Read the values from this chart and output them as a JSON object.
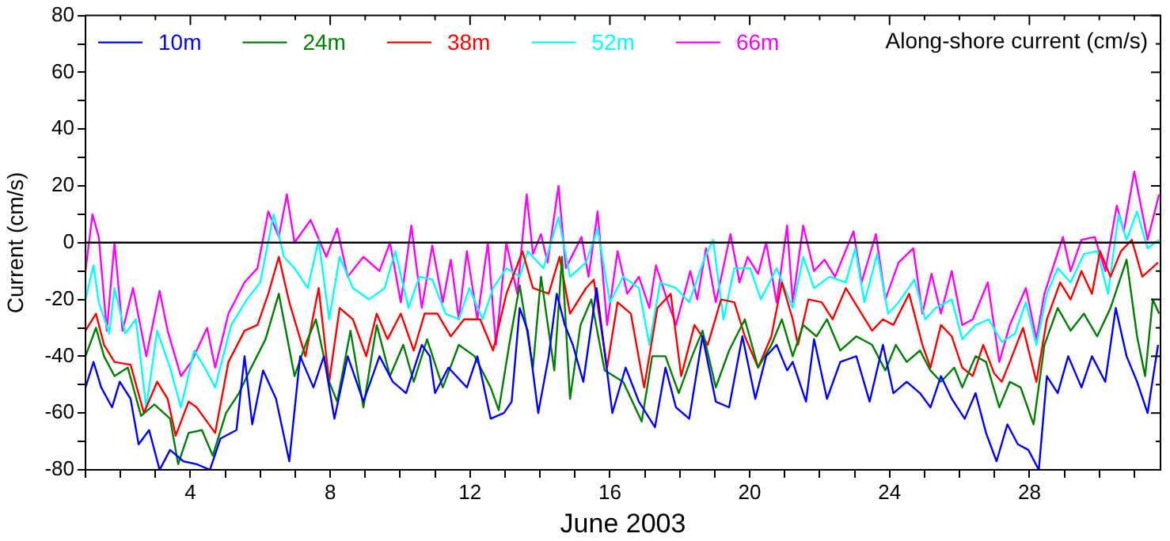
{
  "chart_data": {
    "type": "line",
    "xlabel": "June 2003",
    "ylabel": "Current (cm/s)",
    "annotations": [
      "Along-shore current (cm/s)"
    ],
    "xlim": [
      1,
      31.75
    ],
    "xticks": [
      {
        "value": 1,
        "label": null
      },
      {
        "value": 2,
        "label": null
      },
      {
        "value": 3,
        "label": null
      },
      4,
      {
        "value": 5,
        "label": null
      },
      {
        "value": 6,
        "label": null
      },
      {
        "value": 7,
        "label": null
      },
      8,
      {
        "value": 9,
        "label": null
      },
      {
        "value": 10,
        "label": null
      },
      {
        "value": 11,
        "label": null
      },
      12,
      {
        "value": 13,
        "label": null
      },
      {
        "value": 14,
        "label": null
      },
      {
        "value": 15,
        "label": null
      },
      16,
      {
        "value": 17,
        "label": null
      },
      {
        "value": 18,
        "label": null
      },
      {
        "value": 19,
        "label": null
      },
      20,
      {
        "value": 21,
        "label": null
      },
      {
        "value": 22,
        "label": null
      },
      {
        "value": 23,
        "label": null
      },
      24,
      {
        "value": 25,
        "label": null
      },
      {
        "value": 26,
        "label": null
      },
      {
        "value": 27,
        "label": null
      },
      28,
      {
        "value": 29,
        "label": null
      },
      {
        "value": 30,
        "label": null
      },
      {
        "value": 31,
        "label": null
      }
    ],
    "ylim": [
      -80,
      80
    ],
    "yticks": [
      -80,
      {
        "value": -70,
        "label": null
      },
      -60,
      {
        "value": -50,
        "label": null
      },
      -40,
      {
        "value": -30,
        "label": null
      },
      -20,
      {
        "value": -10,
        "label": null
      },
      0,
      {
        "value": 10,
        "label": null
      },
      20,
      {
        "value": 30,
        "label": null
      },
      40,
      {
        "value": 50,
        "label": null
      },
      60,
      {
        "value": 70,
        "label": null
      },
      80
    ],
    "grid": false,
    "legend": "top left",
    "marker": "none",
    "line_style": "solid",
    "ref_lines": [
      {
        "axis": "y",
        "value": 0,
        "color": "#000000"
      }
    ],
    "series": [
      {
        "name": "10m",
        "color": "#0000ff",
        "x": [
          1.0,
          1.23,
          1.45,
          1.76,
          1.98,
          2.29,
          2.52,
          2.82,
          3.12,
          3.42,
          3.8,
          4.18,
          4.56,
          4.86,
          5.32,
          5.55,
          5.77,
          6.08,
          6.45,
          6.83,
          7.14,
          7.52,
          7.82,
          8.12,
          8.5,
          8.95,
          9.41,
          9.79,
          10.17,
          10.62,
          10.85,
          11.0,
          11.38,
          11.91,
          12.21,
          12.59,
          12.97,
          13.19,
          13.42,
          13.65,
          13.95,
          14.25,
          14.48,
          14.71,
          14.94,
          15.24,
          15.62,
          16.07,
          16.45,
          16.83,
          17.29,
          17.59,
          17.89,
          18.27,
          18.65,
          19.03,
          19.41,
          19.79,
          20.16,
          20.47,
          20.77,
          21.07,
          21.23,
          21.61,
          21.84,
          22.21,
          22.59,
          23.05,
          23.43,
          23.81,
          24.11,
          24.49,
          24.87,
          25.17,
          25.47,
          25.78,
          26.15,
          26.46,
          26.76,
          27.06,
          27.37,
          27.67,
          27.97,
          28.27,
          28.5,
          28.81,
          29.11,
          29.49,
          29.79,
          30.17,
          30.47,
          30.78,
          31.08,
          31.38,
          31.68
        ],
        "values": [
          -51,
          -42,
          -51,
          -58,
          -49,
          -55,
          -71,
          -66,
          -80,
          -73,
          -77,
          -78,
          -80,
          -69,
          -66,
          -40,
          -64,
          -45,
          -55,
          -77,
          -40,
          -51,
          -40,
          -62,
          -40,
          -56,
          -40,
          -49,
          -53,
          -36,
          -40,
          -53,
          -44,
          -51,
          -40,
          -62,
          -60,
          -56,
          -23,
          -31,
          -60,
          -40,
          -18,
          -29,
          -36,
          -49,
          -16,
          -60,
          -44,
          -56,
          -65,
          -44,
          -58,
          -62,
          -33,
          -56,
          -58,
          -33,
          -55,
          -40,
          -36,
          -45,
          -42,
          -56,
          -34,
          -55,
          -42,
          -40,
          -56,
          -36,
          -53,
          -49,
          -53,
          -58,
          -47,
          -55,
          -62,
          -53,
          -67,
          -77,
          -64,
          -71,
          -73,
          -80,
          -47,
          -53,
          -40,
          -51,
          -40,
          -49,
          -23,
          -40,
          -49,
          -60,
          -36
        ]
      },
      {
        "name": "24m",
        "color": "#008000",
        "x": [
          1.0,
          1.3,
          1.53,
          1.83,
          2.21,
          2.59,
          2.97,
          3.42,
          3.65,
          3.95,
          4.33,
          4.64,
          5.02,
          5.39,
          5.7,
          6.15,
          6.53,
          6.98,
          7.29,
          7.59,
          7.97,
          8.2,
          8.58,
          8.95,
          9.33,
          9.71,
          10.09,
          10.39,
          10.77,
          11.22,
          11.68,
          12.13,
          12.59,
          12.82,
          13.12,
          13.42,
          13.8,
          14.03,
          14.41,
          14.63,
          14.86,
          15.16,
          15.47,
          15.85,
          16.38,
          16.91,
          17.21,
          17.59,
          17.97,
          18.35,
          18.65,
          19.03,
          19.41,
          19.86,
          20.24,
          20.62,
          20.92,
          21.23,
          21.53,
          21.91,
          22.21,
          22.59,
          23.05,
          23.5,
          23.88,
          24.18,
          24.49,
          24.87,
          25.17,
          25.47,
          25.85,
          26.08,
          26.46,
          26.76,
          27.14,
          27.44,
          27.75,
          28.12,
          28.43,
          28.81,
          29.18,
          29.56,
          29.94,
          30.32,
          30.78,
          31.08,
          31.31,
          31.53,
          31.71
        ],
        "values": [
          -40,
          -30,
          -40,
          -47,
          -44,
          -61,
          -57,
          -62,
          -78,
          -67,
          -66,
          -75,
          -60,
          -53,
          -45,
          -34,
          -18,
          -47,
          -36,
          -27,
          -49,
          -56,
          -31,
          -58,
          -29,
          -47,
          -36,
          -49,
          -34,
          -51,
          -36,
          -40,
          -51,
          -59,
          -36,
          -15,
          -44,
          -12,
          -45,
          -5,
          -55,
          -29,
          -20,
          -45,
          -49,
          -63,
          -40,
          -40,
          -53,
          -40,
          -31,
          -51,
          -38,
          -27,
          -44,
          -36,
          -27,
          -40,
          -29,
          -33,
          -27,
          -38,
          -33,
          -36,
          -45,
          -36,
          -42,
          -38,
          -45,
          -49,
          -44,
          -51,
          -40,
          -42,
          -58,
          -49,
          -51,
          -64,
          -36,
          -23,
          -31,
          -25,
          -33,
          -23,
          -6,
          -33,
          -47,
          -20,
          -25
        ]
      },
      {
        "name": "38m",
        "color": "#ff0000",
        "x": [
          1.0,
          1.3,
          1.53,
          1.83,
          2.29,
          2.67,
          3.05,
          3.35,
          3.58,
          3.95,
          4.18,
          4.71,
          5.09,
          5.55,
          5.92,
          6.23,
          6.53,
          6.83,
          7.29,
          7.67,
          7.97,
          8.27,
          8.65,
          9.03,
          9.33,
          9.64,
          10.02,
          10.39,
          10.7,
          11.07,
          11.45,
          11.83,
          12.29,
          12.66,
          13.04,
          13.5,
          13.8,
          14.25,
          14.56,
          14.86,
          15.32,
          15.54,
          15.92,
          16.22,
          16.6,
          16.98,
          17.36,
          17.74,
          18.04,
          18.42,
          18.8,
          19.18,
          19.56,
          19.86,
          20.24,
          20.62,
          20.92,
          21.23,
          21.38,
          21.68,
          22.06,
          22.37,
          22.75,
          23.2,
          23.5,
          23.81,
          24.11,
          24.56,
          24.94,
          25.17,
          25.47,
          25.78,
          26.08,
          26.38,
          26.68,
          26.99,
          27.21,
          27.44,
          27.82,
          28.2,
          28.5,
          28.88,
          29.18,
          29.49,
          29.79,
          30.02,
          30.32,
          30.62,
          30.93,
          31.23,
          31.68
        ],
        "values": [
          -31,
          -25,
          -36,
          -42,
          -43,
          -60,
          -49,
          -55,
          -68,
          -56,
          -58,
          -67,
          -42,
          -31,
          -29,
          -18,
          -5,
          -21,
          -40,
          -16,
          -49,
          -23,
          -27,
          -40,
          -25,
          -34,
          -25,
          -38,
          -25,
          -25,
          -33,
          -27,
          -27,
          -38,
          -18,
          -3,
          -16,
          -18,
          -5,
          -25,
          -16,
          -13,
          -44,
          -21,
          -25,
          -51,
          -23,
          -18,
          -47,
          -29,
          -36,
          -20,
          -21,
          -33,
          -44,
          -33,
          -14,
          -27,
          -36,
          -20,
          -21,
          -27,
          -16,
          -25,
          -31,
          -27,
          -29,
          -18,
          -36,
          -44,
          -29,
          -33,
          -44,
          -47,
          -36,
          -46,
          -49,
          -42,
          -30,
          -49,
          -27,
          -14,
          -20,
          -10,
          -18,
          -3,
          -12,
          -3,
          1,
          -12,
          -7
        ]
      },
      {
        "name": "52m",
        "color": "#00ffff",
        "x": [
          1.0,
          1.23,
          1.38,
          1.68,
          1.83,
          2.14,
          2.44,
          2.74,
          3.05,
          3.42,
          3.73,
          4.11,
          4.41,
          4.71,
          5.17,
          5.62,
          6.0,
          6.38,
          6.68,
          6.98,
          7.36,
          7.67,
          7.97,
          8.27,
          8.65,
          9.11,
          9.56,
          9.86,
          10.24,
          10.55,
          10.92,
          11.3,
          11.68,
          11.98,
          12.36,
          12.66,
          13.04,
          13.42,
          13.65,
          14.1,
          14.53,
          14.86,
          15.32,
          15.65,
          16.0,
          16.38,
          16.83,
          17.13,
          17.44,
          17.89,
          18.27,
          18.72,
          18.95,
          19.25,
          19.56,
          20.01,
          20.32,
          20.77,
          21.23,
          21.53,
          21.84,
          22.29,
          22.75,
          23.02,
          23.28,
          23.65,
          23.96,
          24.26,
          24.71,
          25.02,
          25.32,
          25.78,
          26.08,
          26.46,
          26.84,
          27.21,
          27.59,
          27.9,
          28.2,
          28.5,
          28.81,
          29.18,
          29.56,
          29.94,
          30.25,
          30.55,
          30.78,
          31.08,
          31.38,
          31.71
        ],
        "values": [
          -20,
          -8,
          -21,
          -32,
          -16,
          -32,
          -27,
          -58,
          -31,
          -44,
          -58,
          -38,
          -44,
          -51,
          -29,
          -20,
          -14,
          10,
          -5,
          -9,
          -16,
          1,
          -27,
          -5,
          -16,
          -20,
          -16,
          -3,
          -23,
          -12,
          -13,
          -25,
          -27,
          -16,
          -27,
          -16,
          -9,
          -12,
          -3,
          -9,
          9,
          -12,
          -7,
          5,
          -21,
          -12,
          -16,
          -36,
          -14,
          -16,
          -21,
          -5,
          1,
          -27,
          -9,
          -9,
          -20,
          -9,
          -23,
          -5,
          -16,
          -12,
          -14,
          -2,
          -21,
          -4,
          -25,
          -21,
          -13,
          -27,
          -23,
          -20,
          -34,
          -29,
          -27,
          -35,
          -32,
          -21,
          -36,
          -18,
          -9,
          -14,
          -4,
          -3,
          -18,
          10,
          1,
          11,
          -2,
          1
        ]
      },
      {
        "name": "66m",
        "color": "#ff00ff",
        "x": [
          1.0,
          1.2,
          1.38,
          1.61,
          1.83,
          2.06,
          2.36,
          2.74,
          3.12,
          3.35,
          3.73,
          4.03,
          4.48,
          4.71,
          5.09,
          5.55,
          5.92,
          6.23,
          6.53,
          6.76,
          6.98,
          7.44,
          7.89,
          8.2,
          8.5,
          8.95,
          9.41,
          9.71,
          10.02,
          10.32,
          10.62,
          10.77,
          10.92,
          11.22,
          11.45,
          11.68,
          11.91,
          12.21,
          12.51,
          12.74,
          13.04,
          13.35,
          13.62,
          13.8,
          14.03,
          14.22,
          14.53,
          14.74,
          15.19,
          15.39,
          15.65,
          15.92,
          16.22,
          16.5,
          16.83,
          17.13,
          17.32,
          17.66,
          17.89,
          18.3,
          18.5,
          18.75,
          19.03,
          19.45,
          19.71,
          19.94,
          20.24,
          20.47,
          20.77,
          21.07,
          21.23,
          21.53,
          21.84,
          22.14,
          22.44,
          22.97,
          23.2,
          23.61,
          23.88,
          24.26,
          24.68,
          24.94,
          25.2,
          25.47,
          25.78,
          26.08,
          26.38,
          26.81,
          27.14,
          27.44,
          27.9,
          28.2,
          28.43,
          28.96,
          29.18,
          29.49,
          29.87,
          30.17,
          30.5,
          30.7,
          31.0,
          31.38,
          31.71
        ],
        "values": [
          -10,
          10,
          2,
          -31,
          0,
          -31,
          -16,
          -40,
          -17,
          -31,
          -47,
          -42,
          -30,
          -44,
          -25,
          -14,
          -9,
          11,
          2,
          17,
          0,
          8,
          -5,
          5,
          -12,
          -5,
          -10,
          0,
          -21,
          6,
          -23,
          -12,
          -1,
          -21,
          -6,
          -27,
          -3,
          -27,
          0,
          -36,
          0,
          -18,
          17,
          -4,
          3,
          -7,
          20,
          -9,
          2,
          -12,
          11,
          -29,
          -3,
          -18,
          -12,
          -23,
          -8,
          -21,
          -29,
          -10,
          -20,
          -2,
          -21,
          3,
          -14,
          -5,
          -11,
          0,
          -21,
          6,
          -21,
          6,
          -10,
          -6,
          -12,
          4,
          -14,
          3,
          -20,
          -7,
          -2,
          -25,
          -11,
          -25,
          -10,
          -29,
          -27,
          -14,
          -42,
          -29,
          -16,
          -34,
          -18,
          2,
          -10,
          1,
          2,
          -10,
          13,
          4,
          25,
          1,
          17
        ]
      }
    ]
  }
}
